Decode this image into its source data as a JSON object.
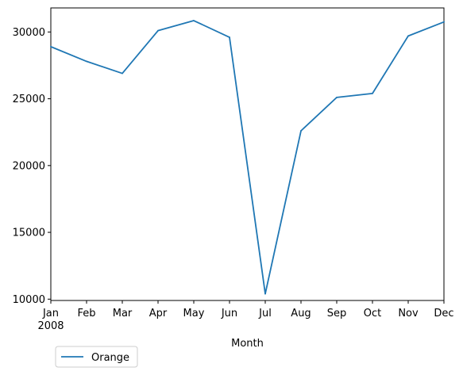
{
  "chart_data": {
    "type": "line",
    "xlabel": "Month",
    "x": [
      "Jan",
      "Feb",
      "Mar",
      "Apr",
      "May",
      "Jun",
      "Jul",
      "Aug",
      "Sep",
      "Oct",
      "Nov",
      "Dec"
    ],
    "year_label": "2008",
    "ylim": [
      9900,
      31800
    ],
    "yticks": [
      10000,
      15000,
      20000,
      25000,
      30000
    ],
    "grid": false,
    "legend_position": "below-left",
    "series": [
      {
        "name": "Orange",
        "color": "#1f77b4",
        "values": [
          28900,
          27800,
          26900,
          30100,
          30850,
          29600,
          10400,
          22600,
          25100,
          25400,
          29700,
          30750
        ]
      }
    ]
  }
}
